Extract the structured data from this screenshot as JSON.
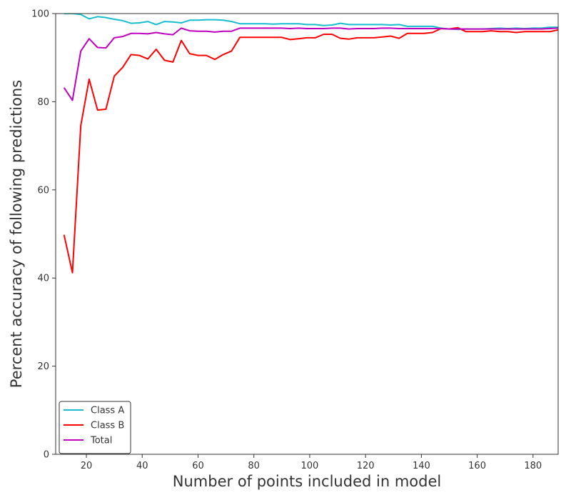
{
  "chart_data": {
    "type": "line",
    "title": "",
    "xlabel": "Number of points included in model",
    "ylabel": "Percent accuracy of following predictions",
    "xlim": [
      9,
      189
    ],
    "ylim": [
      0,
      100
    ],
    "xticks": [
      20,
      40,
      60,
      80,
      100,
      120,
      140,
      160,
      180
    ],
    "yticks": [
      0,
      20,
      40,
      60,
      80,
      100
    ],
    "grid": false,
    "legend": "lower-left",
    "x": [
      12,
      15,
      18,
      21,
      24,
      27,
      30,
      33,
      36,
      39,
      42,
      45,
      48,
      51,
      54,
      57,
      60,
      63,
      66,
      69,
      72,
      75,
      78,
      81,
      84,
      87,
      90,
      93,
      96,
      99,
      102,
      105,
      108,
      111,
      114,
      117,
      120,
      123,
      126,
      129,
      132,
      135,
      138,
      141,
      144,
      147,
      150,
      153,
      156,
      159,
      162,
      165,
      168,
      171,
      174,
      177,
      180,
      183,
      186,
      189
    ],
    "series": [
      {
        "name": "Class A",
        "color": "#17becf",
        "values": [
          100,
          100,
          99.8,
          98.8,
          99.3,
          99.1,
          98.7,
          98.4,
          97.8,
          97.9,
          98.2,
          97.5,
          98.2,
          98.1,
          97.9,
          98.5,
          98.5,
          98.6,
          98.6,
          98.5,
          98.2,
          97.7,
          97.7,
          97.7,
          97.7,
          97.6,
          97.7,
          97.7,
          97.7,
          97.5,
          97.5,
          97.3,
          97.4,
          97.8,
          97.5,
          97.5,
          97.5,
          97.5,
          97.5,
          97.4,
          97.5,
          97.1,
          97.1,
          97.1,
          97.1,
          96.7,
          96.5,
          96.4,
          96.5,
          96.5,
          96.5,
          96.6,
          96.7,
          96.6,
          96.7,
          96.6,
          96.7,
          96.7,
          96.9,
          96.9
        ]
      },
      {
        "name": "Class B",
        "color": "#ff0000",
        "values": [
          49.8,
          41.2,
          74.6,
          85.1,
          78.1,
          78.3,
          85.8,
          87.8,
          90.7,
          90.5,
          89.7,
          91.9,
          89.4,
          89.0,
          93.9,
          90.9,
          90.5,
          90.5,
          89.6,
          90.7,
          91.5,
          94.6,
          94.6,
          94.6,
          94.6,
          94.6,
          94.6,
          94.1,
          94.3,
          94.5,
          94.5,
          95.3,
          95.3,
          94.4,
          94.2,
          94.5,
          94.5,
          94.5,
          94.7,
          94.9,
          94.4,
          95.5,
          95.5,
          95.5,
          95.7,
          96.6,
          96.5,
          96.8,
          95.9,
          95.9,
          95.9,
          96.1,
          95.9,
          95.9,
          95.7,
          95.9,
          95.9,
          95.9,
          95.9,
          96.3
        ]
      },
      {
        "name": "Total",
        "color": "#bf00bf",
        "values": [
          83.2,
          80.3,
          91.5,
          94.3,
          92.3,
          92.2,
          94.5,
          94.8,
          95.5,
          95.5,
          95.4,
          95.7,
          95.4,
          95.2,
          96.7,
          96.1,
          96.0,
          96.0,
          95.8,
          96.0,
          96.0,
          96.7,
          96.7,
          96.7,
          96.7,
          96.7,
          96.7,
          96.6,
          96.7,
          96.6,
          96.6,
          96.6,
          96.7,
          96.7,
          96.5,
          96.6,
          96.6,
          96.6,
          96.7,
          96.7,
          96.6,
          96.6,
          96.6,
          96.6,
          96.6,
          96.6,
          96.5,
          96.5,
          96.5,
          96.5,
          96.5,
          96.5,
          96.5,
          96.5,
          96.5,
          96.5,
          96.5,
          96.5,
          96.6,
          96.7
        ]
      }
    ]
  }
}
